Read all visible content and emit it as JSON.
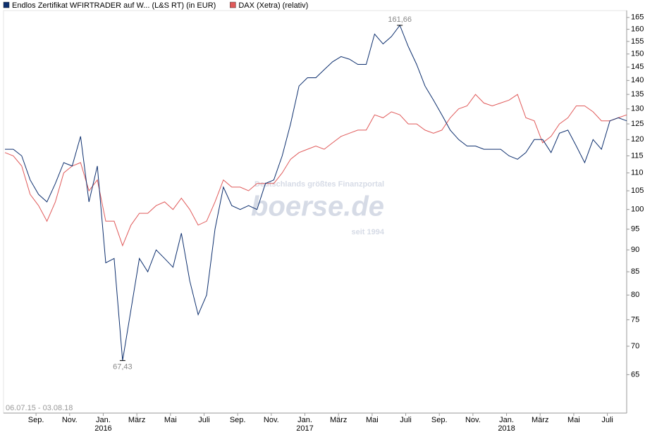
{
  "chart_data": {
    "type": "line",
    "date_range": "06.07.15 - 03.08.18",
    "watermark": {
      "tagline": "Deutschlands größtes Finanzportal",
      "brand": "boerse.de",
      "since": "seit 1994"
    },
    "log_scale": true,
    "x": [
      0,
      0.5,
      1,
      1.5,
      2,
      2.5,
      3,
      3.5,
      4,
      4.5,
      5,
      5.5,
      6,
      6.5,
      7,
      7.5,
      8,
      8.5,
      9,
      9.5,
      10,
      10.5,
      11,
      11.5,
      12,
      12.5,
      13,
      13.5,
      14,
      14.5,
      15,
      15.5,
      16,
      16.5,
      17,
      17.5,
      18,
      18.5,
      19,
      19.5,
      20,
      20.5,
      21,
      21.5,
      22,
      22.5,
      23,
      23.5,
      24,
      24.5,
      25,
      25.5,
      26,
      26.5,
      27,
      27.5,
      28,
      28.5,
      29,
      29.5,
      30,
      30.5,
      31,
      31.5,
      32,
      32.5,
      33,
      33.5,
      34,
      34.5,
      35,
      35.5,
      36,
      36.5,
      37
    ],
    "xlim": [
      0,
      37
    ],
    "xticks": [
      {
        "value": 1.85,
        "label": "Sep."
      },
      {
        "value": 3.85,
        "label": "Nov."
      },
      {
        "value": 5.85,
        "label": "Jan."
      },
      {
        "value": 7.85,
        "label": "März"
      },
      {
        "value": 9.85,
        "label": "Mai"
      },
      {
        "value": 11.85,
        "label": "Juli"
      },
      {
        "value": 13.85,
        "label": "Sep."
      },
      {
        "value": 15.85,
        "label": "Nov."
      },
      {
        "value": 17.85,
        "label": "Jan."
      },
      {
        "value": 19.85,
        "label": "März"
      },
      {
        "value": 21.85,
        "label": "Mai"
      },
      {
        "value": 23.85,
        "label": "Juli"
      },
      {
        "value": 25.85,
        "label": "Sep."
      },
      {
        "value": 27.85,
        "label": "Nov."
      },
      {
        "value": 29.85,
        "label": "Jan."
      },
      {
        "value": 31.85,
        "label": "März"
      },
      {
        "value": 33.85,
        "label": "Mai"
      },
      {
        "value": 35.85,
        "label": "Juli"
      }
    ],
    "xtick_years": [
      {
        "value": 5.85,
        "label": "2016"
      },
      {
        "value": 17.85,
        "label": "2017"
      },
      {
        "value": 29.85,
        "label": "2018"
      }
    ],
    "ylim": [
      58.8,
      168
    ],
    "yticks": [
      65,
      70,
      75,
      80,
      85,
      90,
      95,
      100,
      105,
      110,
      115,
      120,
      125,
      130,
      135,
      140,
      145,
      150,
      155,
      160,
      165
    ],
    "series": [
      {
        "name": "Endlos Zertifikat WFIRTRADER auf W... (L&S RT) (in EUR)",
        "color": "#0d2f6e",
        "values": [
          117,
          117,
          115,
          108,
          104,
          102,
          107,
          113,
          112,
          121,
          102,
          112,
          87,
          88,
          67.43,
          77,
          88,
          85,
          90,
          88,
          86,
          94,
          83,
          76,
          80,
          95,
          106,
          101,
          100,
          101,
          100,
          107,
          108,
          115,
          125,
          138,
          141,
          141,
          144,
          147,
          149,
          148,
          146,
          146,
          158,
          154,
          157,
          161.66,
          153,
          146,
          138,
          133,
          128,
          123,
          120,
          118,
          118,
          117,
          117,
          117,
          115,
          114,
          116,
          120,
          120,
          116,
          122,
          123,
          118,
          113,
          120,
          117,
          126,
          127,
          126
        ],
        "value_labels": [
          null,
          null,
          null,
          null,
          null,
          null,
          null,
          null,
          null,
          null,
          null,
          null,
          null,
          null,
          "67,43",
          null,
          null,
          null,
          null,
          null,
          null,
          null,
          null,
          null,
          null,
          null,
          null,
          null,
          null,
          null,
          null,
          null,
          null,
          null,
          null,
          null,
          null,
          null,
          null,
          null,
          null,
          null,
          null,
          null,
          null,
          null,
          null,
          "161,66",
          null,
          null,
          null,
          null,
          null,
          null,
          null,
          null,
          null,
          null,
          null,
          null,
          null,
          null,
          null,
          null,
          null,
          null,
          null,
          null,
          null,
          null,
          null,
          null,
          null,
          null,
          null
        ]
      },
      {
        "name": "DAX (Xetra) (relativ)",
        "color": "#e05a5a",
        "values": [
          116,
          115,
          112,
          104,
          101,
          97,
          102,
          110,
          112,
          113,
          105,
          108,
          97,
          97,
          91,
          96,
          99,
          99,
          101,
          102,
          100,
          103,
          100,
          96,
          97,
          102,
          108,
          106,
          106,
          105,
          107,
          107,
          107,
          110,
          114,
          116,
          117,
          118,
          117,
          119,
          121,
          122,
          123,
          123,
          128,
          127,
          129,
          128,
          125,
          125,
          123,
          122,
          123,
          127,
          130,
          131,
          135,
          132,
          131,
          132,
          133,
          135,
          127,
          126,
          119,
          121,
          125,
          127,
          131,
          131,
          129,
          126,
          126,
          127,
          128
        ]
      }
    ]
  }
}
